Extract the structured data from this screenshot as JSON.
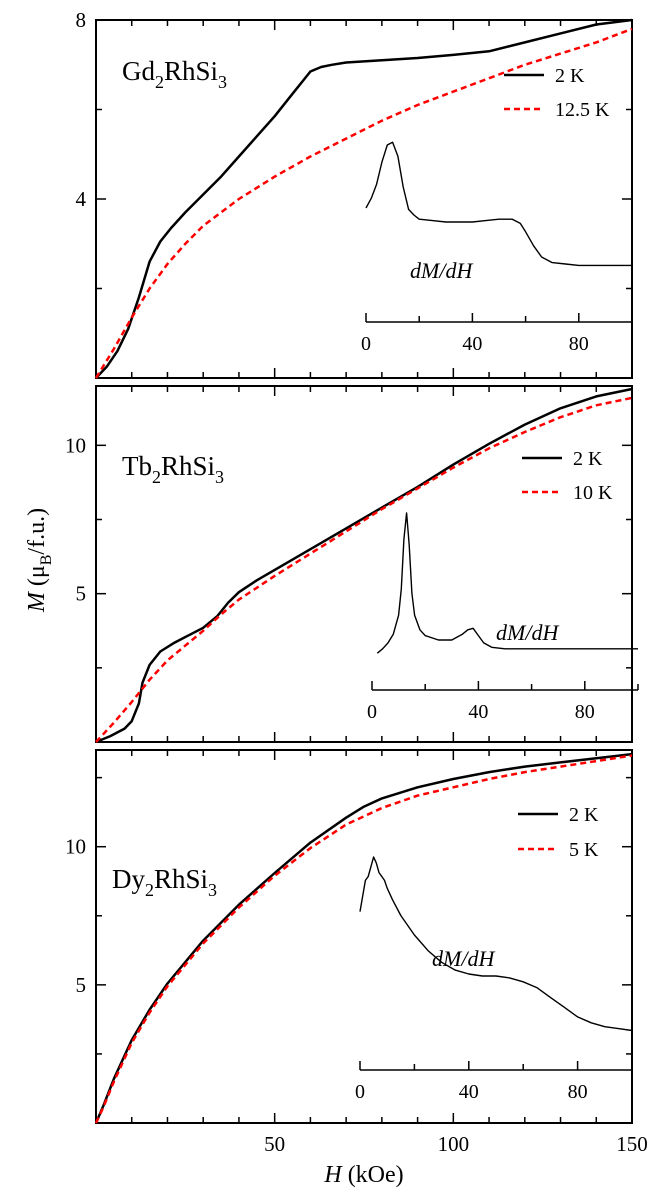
{
  "figure": {
    "x_axis_title": {
      "italic": "H",
      "rest": " (kOe)"
    },
    "y_axis_title": {
      "italic": "M",
      "rest_open": " (μ",
      "sub": "B",
      "rest_close": "/f.u.)"
    }
  },
  "chart_data": [
    {
      "type": "line",
      "material": {
        "prefix": "Gd",
        "sub1": "2",
        "mid": "RhSi",
        "sub2": "3"
      },
      "xlim": [
        0,
        150
      ],
      "ylim": [
        0,
        8
      ],
      "yticks": [
        4,
        8
      ],
      "xticks": [
        50,
        100,
        150
      ],
      "show_xtick_labels": false,
      "legend_position": "top-right",
      "series": [
        {
          "name": "2 K",
          "color": "#000000",
          "style": "solid",
          "x": [
            0,
            3,
            6,
            9,
            12,
            15,
            18,
            21,
            25,
            30,
            35,
            40,
            45,
            50,
            55,
            58,
            60,
            63,
            66,
            70,
            80,
            90,
            100,
            110,
            120,
            130,
            140,
            150
          ],
          "y": [
            0,
            0.25,
            0.6,
            1.1,
            1.8,
            2.6,
            3.05,
            3.35,
            3.7,
            4.1,
            4.5,
            4.95,
            5.4,
            5.85,
            6.35,
            6.65,
            6.85,
            6.95,
            7.0,
            7.05,
            7.1,
            7.15,
            7.22,
            7.3,
            7.5,
            7.7,
            7.9,
            8.1
          ]
        },
        {
          "name": "12.5 K",
          "color": "#ff0000",
          "style": "dashed",
          "x": [
            0,
            5,
            10,
            15,
            20,
            25,
            30,
            40,
            50,
            60,
            70,
            80,
            90,
            100,
            110,
            120,
            130,
            140,
            150
          ],
          "y": [
            0,
            0.65,
            1.35,
            2.0,
            2.55,
            3.0,
            3.4,
            4.0,
            4.5,
            4.95,
            5.35,
            5.75,
            6.1,
            6.4,
            6.7,
            7.0,
            7.25,
            7.5,
            7.8
          ]
        }
      ],
      "inset": {
        "label": "dM/dH",
        "xlim": [
          0,
          100
        ],
        "xticks": [
          0,
          40,
          80
        ],
        "series": {
          "name": "dM/dH",
          "x": [
            0,
            2,
            4,
            6,
            8,
            10,
            12,
            14,
            16,
            18,
            20,
            25,
            30,
            35,
            40,
            45,
            50,
            55,
            58,
            60,
            63,
            66,
            70,
            75,
            80,
            90,
            100
          ],
          "y": [
            0.55,
            0.62,
            0.72,
            0.88,
            1.0,
            1.02,
            0.92,
            0.7,
            0.54,
            0.5,
            0.47,
            0.46,
            0.45,
            0.45,
            0.45,
            0.46,
            0.47,
            0.47,
            0.44,
            0.38,
            0.28,
            0.2,
            0.16,
            0.15,
            0.14,
            0.14,
            0.14
          ]
        }
      }
    },
    {
      "type": "line",
      "material": {
        "prefix": "Tb",
        "sub1": "2",
        "mid": "RhSi",
        "sub2": "3"
      },
      "xlim": [
        0,
        150
      ],
      "ylim": [
        0,
        12
      ],
      "yticks": [
        5,
        10
      ],
      "xticks": [
        50,
        100,
        150
      ],
      "show_xtick_labels": false,
      "legend_position": "top-right",
      "series": [
        {
          "name": "2 K",
          "color": "#000000",
          "style": "solid",
          "x": [
            0,
            4,
            8,
            10,
            12,
            13,
            15,
            18,
            22,
            26,
            30,
            34,
            37,
            40,
            45,
            50,
            60,
            70,
            80,
            90,
            100,
            110,
            120,
            130,
            140,
            150
          ],
          "y": [
            0,
            0.2,
            0.45,
            0.7,
            1.3,
            2.0,
            2.6,
            3.05,
            3.35,
            3.6,
            3.85,
            4.25,
            4.7,
            5.05,
            5.45,
            5.8,
            6.5,
            7.2,
            7.9,
            8.6,
            9.35,
            10.05,
            10.7,
            11.25,
            11.65,
            11.9
          ]
        },
        {
          "name": "10 K",
          "color": "#ff0000",
          "style": "dashed",
          "x": [
            0,
            5,
            10,
            15,
            20,
            25,
            30,
            35,
            40,
            50,
            60,
            70,
            80,
            90,
            100,
            110,
            120,
            130,
            140,
            150
          ],
          "y": [
            0,
            0.65,
            1.35,
            2.1,
            2.75,
            3.25,
            3.75,
            4.3,
            4.8,
            5.6,
            6.35,
            7.1,
            7.85,
            8.55,
            9.25,
            9.9,
            10.45,
            10.95,
            11.35,
            11.6
          ]
        }
      ],
      "inset": {
        "label": "dM/dH",
        "xlim": [
          0,
          100
        ],
        "xticks": [
          0,
          40,
          80
        ],
        "series": {
          "name": "dM/dH",
          "x": [
            2,
            4,
            6,
            8,
            10,
            11,
            12,
            13,
            14,
            15,
            16,
            18,
            20,
            25,
            30,
            34,
            36,
            38,
            40,
            42,
            45,
            50,
            55,
            60,
            70,
            80,
            90,
            100
          ],
          "y": [
            0.04,
            0.07,
            0.11,
            0.17,
            0.3,
            0.48,
            0.82,
            1.0,
            0.78,
            0.45,
            0.3,
            0.2,
            0.16,
            0.13,
            0.13,
            0.17,
            0.2,
            0.21,
            0.16,
            0.11,
            0.08,
            0.07,
            0.07,
            0.07,
            0.07,
            0.07,
            0.07,
            0.07
          ]
        }
      }
    },
    {
      "type": "line",
      "material": {
        "prefix": "Dy",
        "sub1": "2",
        "mid": "RhSi",
        "sub2": "3"
      },
      "xlim": [
        0,
        150
      ],
      "ylim": [
        0,
        13.5
      ],
      "yticks": [
        5,
        10
      ],
      "xticks": [
        50,
        100,
        150
      ],
      "show_xtick_labels": true,
      "legend_position": "top-right",
      "series": [
        {
          "name": "2 K",
          "color": "#000000",
          "style": "solid",
          "x": [
            0,
            2,
            5,
            10,
            15,
            20,
            30,
            40,
            50,
            60,
            70,
            75,
            80,
            90,
            100,
            110,
            120,
            130,
            140,
            150
          ],
          "y": [
            0,
            0.6,
            1.6,
            3.0,
            4.1,
            5.05,
            6.6,
            7.9,
            9.05,
            10.15,
            11.05,
            11.45,
            11.75,
            12.15,
            12.45,
            12.7,
            12.9,
            13.05,
            13.2,
            13.35
          ]
        },
        {
          "name": "5 K",
          "color": "#ff0000",
          "style": "dashed",
          "x": [
            0,
            2,
            5,
            10,
            15,
            20,
            30,
            40,
            50,
            60,
            70,
            80,
            90,
            100,
            110,
            120,
            130,
            140,
            150
          ],
          "y": [
            0,
            0.55,
            1.5,
            2.9,
            4.0,
            4.95,
            6.5,
            7.8,
            8.95,
            9.95,
            10.8,
            11.4,
            11.85,
            12.15,
            12.45,
            12.7,
            12.9,
            13.1,
            13.3
          ]
        }
      ],
      "inset": {
        "label": "dM/dH",
        "xlim": [
          0,
          100
        ],
        "xticks": [
          0,
          40,
          80
        ],
        "series": {
          "name": "dM/dH",
          "x": [
            0,
            1,
            2,
            3,
            4,
            5,
            6,
            7,
            8,
            9,
            10,
            12,
            15,
            20,
            25,
            30,
            35,
            40,
            45,
            50,
            55,
            60,
            65,
            70,
            75,
            80,
            85,
            90,
            95,
            100
          ],
          "y": [
            0.72,
            0.8,
            0.88,
            0.9,
            0.95,
            1.0,
            0.97,
            0.92,
            0.9,
            0.88,
            0.84,
            0.78,
            0.7,
            0.6,
            0.52,
            0.46,
            0.42,
            0.4,
            0.39,
            0.39,
            0.38,
            0.36,
            0.33,
            0.28,
            0.23,
            0.18,
            0.15,
            0.13,
            0.12,
            0.11
          ]
        }
      }
    }
  ]
}
